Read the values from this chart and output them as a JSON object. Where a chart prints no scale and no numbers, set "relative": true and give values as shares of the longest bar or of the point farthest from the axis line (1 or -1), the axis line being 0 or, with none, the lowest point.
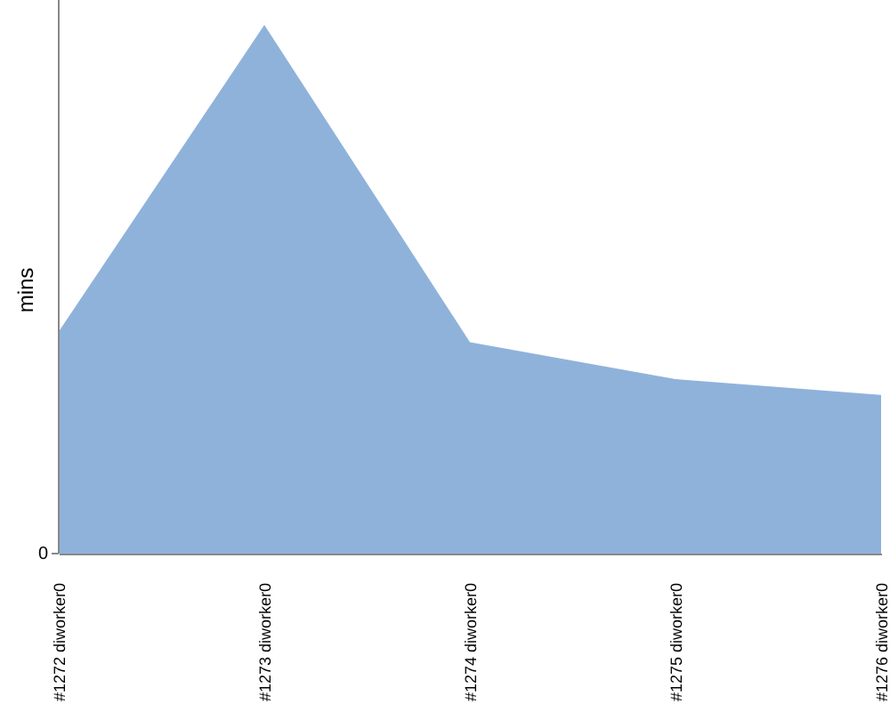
{
  "chart_data": {
    "type": "area",
    "ylabel": "mins",
    "categories": [
      "#1272 diworker0",
      "#1273 diworker0",
      "#1274 diworker0",
      "#1275 diworker0",
      "#1276 diworker0"
    ],
    "values": [
      0.42,
      1,
      0.4,
      0.33,
      0.3
    ],
    "color": "#8fb2db",
    "relative": true,
    "annotations": [
      "0"
    ]
  }
}
